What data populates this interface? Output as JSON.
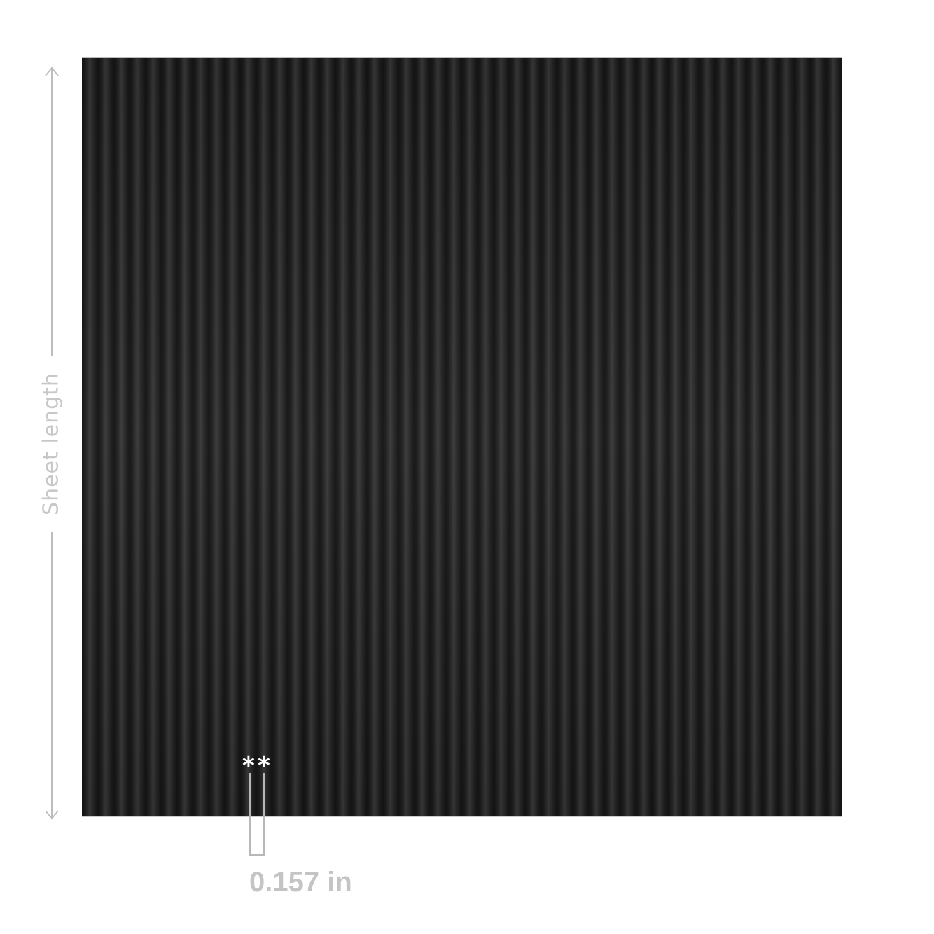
{
  "sheet": {
    "color": "#1a1a1a",
    "pattern": "vertical-ribs"
  },
  "length_dimension": {
    "label": "Sheet length",
    "icon": "double-arrow-vertical"
  },
  "rib_dimension": {
    "markers": [
      "*",
      "*"
    ],
    "label": "0.157 in"
  }
}
